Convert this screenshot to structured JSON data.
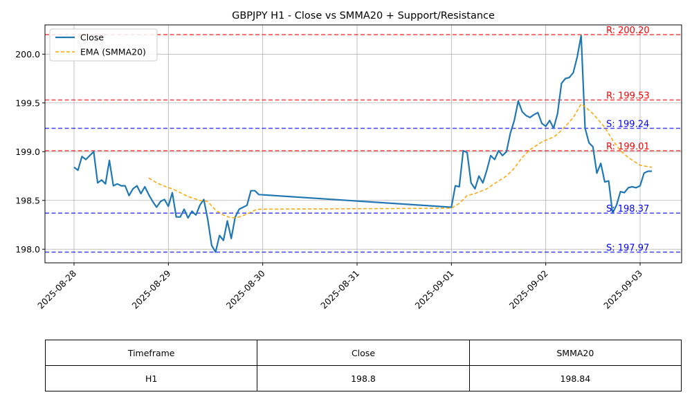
{
  "chart_data": {
    "type": "line",
    "title": "GBPJPY H1 - Close vs SMMA20 + Support/Resistance",
    "xlabel": "",
    "ylabel": "",
    "ylim": [
      197.86,
      200.3
    ],
    "yticks": [
      "198.0",
      "198.5",
      "199.0",
      "199.5",
      "200.0"
    ],
    "ytick_values": [
      198.0,
      198.5,
      199.0,
      199.5,
      200.0
    ],
    "xticks": [
      "2025-08-28",
      "2025-08-29",
      "2025-08-30",
      "2025-08-31",
      "2025-09-01",
      "2025-09-02",
      "2025-09-03"
    ],
    "grid": true,
    "legend_position": "top-left",
    "series": [
      {
        "name": "Close",
        "color": "#1f77b4",
        "style": "solid",
        "points": [
          [
            "2025-08-28 00:00",
            198.84
          ],
          [
            "2025-08-28 01:00",
            198.81
          ],
          [
            "2025-08-28 02:00",
            198.95
          ],
          [
            "2025-08-28 03:00",
            198.92
          ],
          [
            "2025-08-28 04:00",
            198.96
          ],
          [
            "2025-08-28 05:00",
            199.0
          ],
          [
            "2025-08-28 06:00",
            198.68
          ],
          [
            "2025-08-28 07:00",
            198.71
          ],
          [
            "2025-08-28 08:00",
            198.67
          ],
          [
            "2025-08-28 09:00",
            198.91
          ],
          [
            "2025-08-28 10:00",
            198.65
          ],
          [
            "2025-08-28 11:00",
            198.67
          ],
          [
            "2025-08-28 12:00",
            198.65
          ],
          [
            "2025-08-28 13:00",
            198.65
          ],
          [
            "2025-08-28 14:00",
            198.55
          ],
          [
            "2025-08-28 15:00",
            198.62
          ],
          [
            "2025-08-28 16:00",
            198.65
          ],
          [
            "2025-08-28 17:00",
            198.57
          ],
          [
            "2025-08-28 18:00",
            198.64
          ],
          [
            "2025-08-28 19:00",
            198.56
          ],
          [
            "2025-08-28 20:00",
            198.49
          ],
          [
            "2025-08-28 21:00",
            198.43
          ],
          [
            "2025-08-28 22:00",
            198.49
          ],
          [
            "2025-08-28 23:00",
            198.51
          ],
          [
            "2025-08-29 00:00",
            198.44
          ],
          [
            "2025-08-29 01:00",
            198.58
          ],
          [
            "2025-08-29 02:00",
            198.33
          ],
          [
            "2025-08-29 03:00",
            198.33
          ],
          [
            "2025-08-29 04:00",
            198.41
          ],
          [
            "2025-08-29 05:00",
            198.32
          ],
          [
            "2025-08-29 06:00",
            198.39
          ],
          [
            "2025-08-29 07:00",
            198.35
          ],
          [
            "2025-08-29 08:00",
            198.45
          ],
          [
            "2025-08-29 09:00",
            198.51
          ],
          [
            "2025-08-29 10:00",
            198.31
          ],
          [
            "2025-08-29 11:00",
            198.04
          ],
          [
            "2025-08-29 12:00",
            197.97
          ],
          [
            "2025-08-29 13:00",
            198.14
          ],
          [
            "2025-08-29 14:00",
            198.09
          ],
          [
            "2025-08-29 15:00",
            198.29
          ],
          [
            "2025-08-29 16:00",
            198.11
          ],
          [
            "2025-08-29 17:00",
            198.33
          ],
          [
            "2025-08-29 18:00",
            198.41
          ],
          [
            "2025-08-29 19:00",
            198.43
          ],
          [
            "2025-08-29 20:00",
            198.45
          ],
          [
            "2025-08-29 21:00",
            198.6
          ],
          [
            "2025-08-29 22:00",
            198.6
          ],
          [
            "2025-08-29 23:00",
            198.56
          ],
          [
            "2025-09-01 00:00",
            198.43
          ],
          [
            "2025-09-01 01:00",
            198.65
          ],
          [
            "2025-09-01 02:00",
            198.64
          ],
          [
            "2025-09-01 03:00",
            199.01
          ],
          [
            "2025-09-01 04:00",
            198.99
          ],
          [
            "2025-09-01 05:00",
            198.68
          ],
          [
            "2025-09-01 06:00",
            198.62
          ],
          [
            "2025-09-01 07:00",
            198.75
          ],
          [
            "2025-09-01 08:00",
            198.68
          ],
          [
            "2025-09-01 09:00",
            198.81
          ],
          [
            "2025-09-01 10:00",
            198.96
          ],
          [
            "2025-09-01 11:00",
            198.92
          ],
          [
            "2025-09-01 12:00",
            199.01
          ],
          [
            "2025-09-01 13:00",
            198.96
          ],
          [
            "2025-09-01 14:00",
            199.0
          ],
          [
            "2025-09-01 15:00",
            199.19
          ],
          [
            "2025-09-01 16:00",
            199.32
          ],
          [
            "2025-09-01 17:00",
            199.52
          ],
          [
            "2025-09-01 18:00",
            199.41
          ],
          [
            "2025-09-01 19:00",
            199.37
          ],
          [
            "2025-09-01 20:00",
            199.35
          ],
          [
            "2025-09-01 21:00",
            199.38
          ],
          [
            "2025-09-01 22:00",
            199.4
          ],
          [
            "2025-09-01 23:00",
            199.29
          ],
          [
            "2025-09-02 00:00",
            199.26
          ],
          [
            "2025-09-02 01:00",
            199.32
          ],
          [
            "2025-09-02 02:00",
            199.24
          ],
          [
            "2025-09-02 03:00",
            199.39
          ],
          [
            "2025-09-02 04:00",
            199.7
          ],
          [
            "2025-09-02 05:00",
            199.75
          ],
          [
            "2025-09-02 06:00",
            199.76
          ],
          [
            "2025-09-02 07:00",
            199.81
          ],
          [
            "2025-09-02 08:00",
            199.97
          ],
          [
            "2025-09-02 09:00",
            200.19
          ],
          [
            "2025-09-02 10:00",
            199.24
          ],
          [
            "2025-09-02 11:00",
            199.09
          ],
          [
            "2025-09-02 12:00",
            199.05
          ],
          [
            "2025-09-02 13:00",
            198.78
          ],
          [
            "2025-09-02 14:00",
            198.88
          ],
          [
            "2025-09-02 15:00",
            198.69
          ],
          [
            "2025-09-02 16:00",
            198.7
          ],
          [
            "2025-09-02 17:00",
            198.37
          ],
          [
            "2025-09-02 18:00",
            198.45
          ],
          [
            "2025-09-02 19:00",
            198.59
          ],
          [
            "2025-09-02 20:00",
            198.58
          ],
          [
            "2025-09-02 21:00",
            198.63
          ],
          [
            "2025-09-02 22:00",
            198.64
          ],
          [
            "2025-09-02 23:00",
            198.63
          ],
          [
            "2025-09-03 00:00",
            198.65
          ],
          [
            "2025-09-03 01:00",
            198.78
          ],
          [
            "2025-09-03 02:00",
            198.8
          ],
          [
            "2025-09-03 03:00",
            198.8
          ]
        ]
      },
      {
        "name": "EMA (SMMA20)",
        "color": "#ffa500",
        "style": "dashed",
        "points": [
          [
            "2025-08-28 19:00",
            198.73
          ],
          [
            "2025-08-28 21:00",
            198.68
          ],
          [
            "2025-08-29 00:00",
            198.63
          ],
          [
            "2025-08-29 01:00",
            198.62
          ],
          [
            "2025-08-29 03:00",
            198.58
          ],
          [
            "2025-08-29 05:00",
            198.54
          ],
          [
            "2025-08-29 08:00",
            198.5
          ],
          [
            "2025-08-29 10:00",
            198.49
          ],
          [
            "2025-08-29 12:00",
            198.4
          ],
          [
            "2025-08-29 14:00",
            198.35
          ],
          [
            "2025-08-29 16:00",
            198.32
          ],
          [
            "2025-08-29 18:00",
            198.33
          ],
          [
            "2025-08-29 20:00",
            198.36
          ],
          [
            "2025-08-29 22:00",
            198.4
          ],
          [
            "2025-08-29 23:00",
            198.41
          ],
          [
            "2025-09-01 00:00",
            198.42
          ],
          [
            "2025-09-01 02:00",
            198.47
          ],
          [
            "2025-09-01 04:00",
            198.55
          ],
          [
            "2025-09-01 06:00",
            198.57
          ],
          [
            "2025-09-01 09:00",
            198.62
          ],
          [
            "2025-09-01 12:00",
            198.7
          ],
          [
            "2025-09-01 14:00",
            198.75
          ],
          [
            "2025-09-01 16:00",
            198.83
          ],
          [
            "2025-09-01 18:00",
            198.94
          ],
          [
            "2025-09-01 20:00",
            199.02
          ],
          [
            "2025-09-01 23:00",
            199.1
          ],
          [
            "2025-09-02 02:00",
            199.15
          ],
          [
            "2025-09-02 03:00",
            199.18
          ],
          [
            "2025-09-02 05:00",
            199.26
          ],
          [
            "2025-09-02 07:00",
            199.35
          ],
          [
            "2025-09-02 09:00",
            199.49
          ],
          [
            "2025-09-02 10:00",
            199.46
          ],
          [
            "2025-09-02 12:00",
            199.39
          ],
          [
            "2025-09-02 15:00",
            199.25
          ],
          [
            "2025-09-02 17:00",
            199.12
          ],
          [
            "2025-09-02 19:00",
            199.01
          ],
          [
            "2025-09-02 21:00",
            198.94
          ],
          [
            "2025-09-03 00:00",
            198.86
          ],
          [
            "2025-09-03 03:00",
            198.84
          ]
        ]
      }
    ],
    "hlines": [
      {
        "kind": "resistance",
        "value": 200.2,
        "label": "R: 200.20",
        "color": "#ff0000"
      },
      {
        "kind": "resistance",
        "value": 199.53,
        "label": "R: 199.53",
        "color": "#ff0000"
      },
      {
        "kind": "support",
        "value": 199.24,
        "label": "S: 199.24",
        "color": "#0000ff"
      },
      {
        "kind": "resistance",
        "value": 199.01,
        "label": "R: 199.01",
        "color": "#ff0000"
      },
      {
        "kind": "support",
        "value": 198.37,
        "label": "S: 198.37",
        "color": "#0000ff"
      },
      {
        "kind": "support",
        "value": 197.97,
        "label": "S: 197.97",
        "color": "#0000ff"
      }
    ]
  },
  "table": {
    "headers": [
      "Timeframe",
      "Close",
      "SMMA20"
    ],
    "rows": [
      [
        "H1",
        "198.8",
        "198.84"
      ]
    ]
  }
}
